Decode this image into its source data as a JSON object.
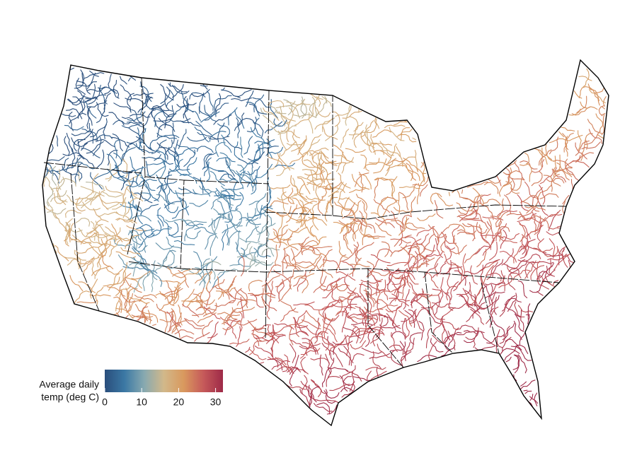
{
  "legend": {
    "title_lines": [
      "Average daily",
      "temp (deg C)"
    ],
    "range": [
      0,
      32
    ],
    "ticks": [
      0,
      10,
      20,
      30
    ],
    "colors": [
      "#2a4e7c",
      "#3b78a4",
      "#87a9b0",
      "#d2b88a",
      "#d9995e",
      "#c65a5a",
      "#9e2a48"
    ]
  }
}
